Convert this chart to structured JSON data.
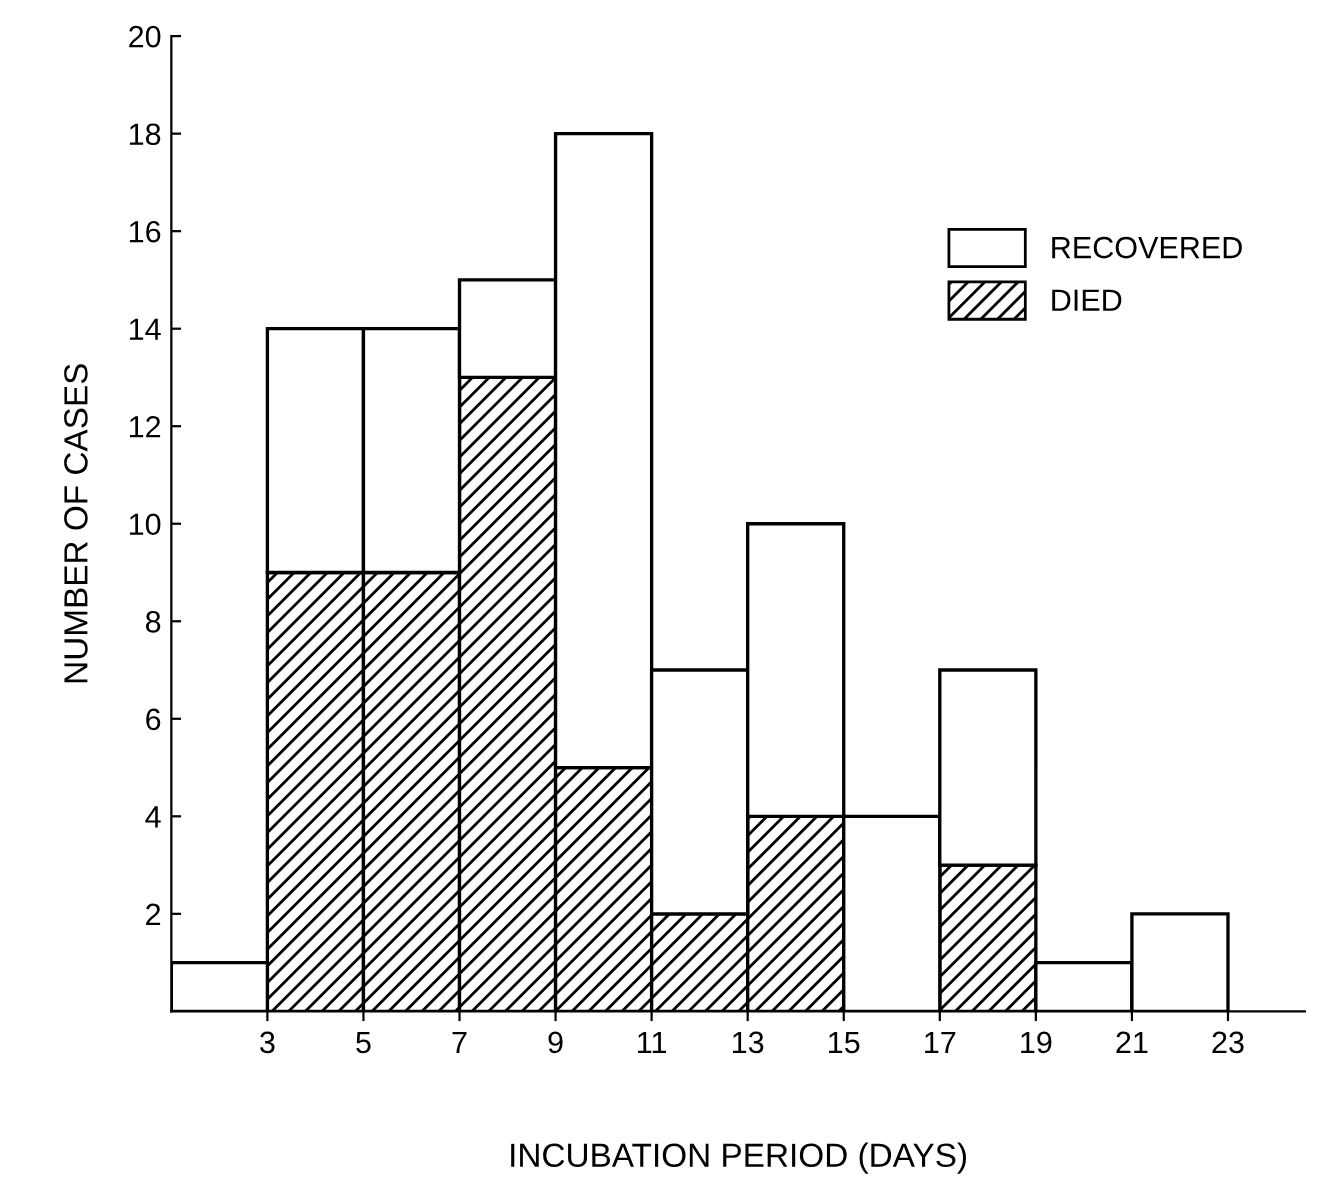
{
  "chart_data": {
    "type": "bar",
    "xlabel": "INCUBATION PERIOD (DAYS)",
    "ylabel": "NUMBER OF CASES",
    "x": [
      2,
      4,
      6,
      8,
      10,
      12,
      14,
      16,
      18,
      20,
      22
    ],
    "stacked": true,
    "series": [
      {
        "name": "DIED",
        "color": "#000000",
        "values": [
          0,
          9,
          9,
          13,
          5,
          2,
          4,
          0,
          3,
          0,
          0
        ]
      },
      {
        "name": "RECOVERED",
        "color": "#ffffff",
        "values": [
          1,
          5,
          5,
          2,
          13,
          5,
          6,
          4,
          4,
          1,
          2
        ]
      }
    ],
    "xlim": [
      1,
      24.6
    ],
    "xticks": [
      3,
      5,
      7,
      9,
      11,
      13,
      15,
      17,
      19,
      21,
      23
    ],
    "ylim": [
      0,
      20
    ],
    "yticks": [
      2,
      4,
      6,
      8,
      10,
      12,
      14,
      16,
      18,
      20
    ],
    "legend": "top right",
    "grid": false
  }
}
